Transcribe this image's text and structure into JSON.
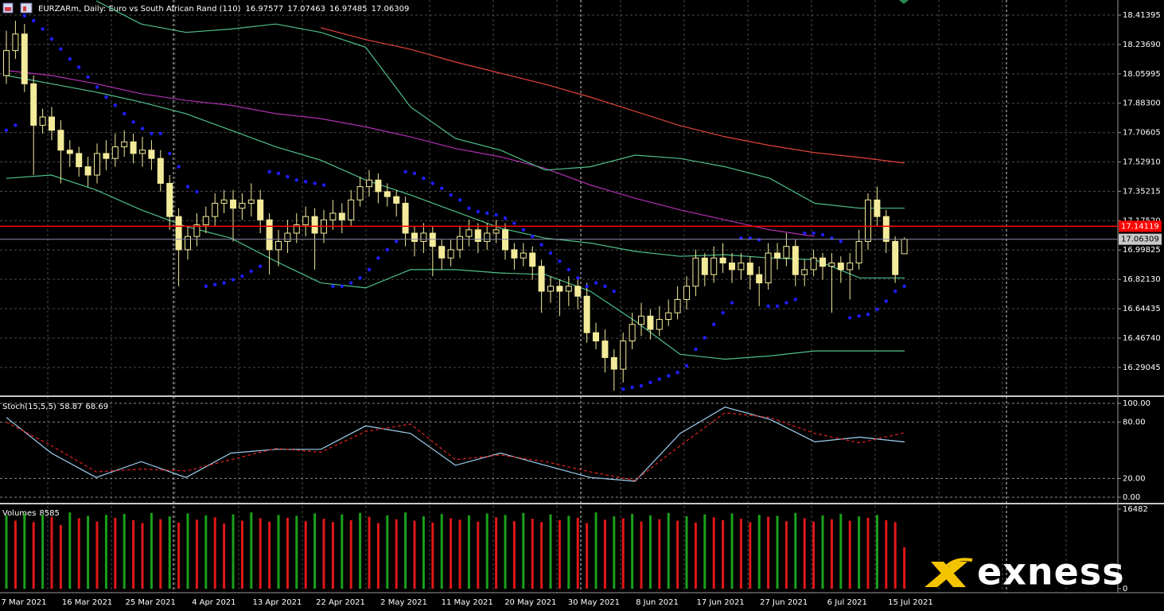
{
  "chart_data": [
    {
      "type": "candlestick",
      "title": "EURZARm, Daily:  Euro vs South African Rand (110)",
      "color": "#f3eb9a",
      "open": [
        18.05,
        18.2,
        18.3,
        18.0,
        17.75,
        17.8,
        17.72,
        17.6,
        17.58,
        17.5,
        17.45,
        17.58,
        17.55,
        17.62,
        17.65,
        17.58,
        17.6,
        17.55,
        17.4,
        17.2,
        17.0,
        17.08,
        17.15,
        17.2,
        17.28,
        17.3,
        17.25,
        17.28,
        17.3,
        17.18,
        17.0,
        17.05,
        17.1,
        17.15,
        17.2,
        17.1,
        17.18,
        17.22,
        17.18,
        17.3,
        17.38,
        17.42,
        17.35,
        17.32,
        17.28,
        17.1,
        17.05,
        17.1,
        17.02,
        16.95,
        17.0,
        17.08,
        17.12,
        17.05,
        17.1,
        17.12,
        17.0,
        16.95,
        16.98,
        16.9,
        16.75,
        16.78,
        16.75,
        16.78,
        16.72,
        16.5,
        16.45,
        16.35,
        16.28,
        16.45,
        16.55,
        16.6,
        16.52,
        16.58,
        16.62,
        16.7,
        16.78,
        16.95,
        16.85,
        16.95,
        16.92,
        16.88,
        16.92,
        16.85,
        16.8,
        16.98,
        16.95,
        17.02,
        16.85,
        16.88,
        16.95,
        16.9,
        16.92,
        16.88,
        16.92,
        17.05,
        17.3,
        17.2,
        17.05,
        16.97577
      ],
      "high": [
        18.32,
        18.38,
        18.36,
        18.05,
        17.85,
        17.86,
        17.78,
        17.66,
        17.62,
        17.56,
        17.64,
        17.66,
        17.7,
        17.72,
        17.7,
        17.68,
        17.66,
        17.6,
        17.45,
        17.25,
        17.14,
        17.22,
        17.26,
        17.34,
        17.36,
        17.36,
        17.34,
        17.4,
        17.36,
        17.22,
        17.12,
        17.18,
        17.22,
        17.26,
        17.25,
        17.24,
        17.3,
        17.28,
        17.36,
        17.44,
        17.48,
        17.46,
        17.4,
        17.36,
        17.32,
        17.14,
        17.16,
        17.14,
        17.06,
        17.06,
        17.14,
        17.18,
        17.16,
        17.16,
        17.18,
        17.16,
        17.04,
        17.04,
        17.02,
        16.94,
        16.84,
        16.82,
        16.84,
        16.84,
        16.8,
        16.56,
        16.52,
        16.4,
        16.5,
        16.62,
        16.68,
        16.64,
        16.66,
        16.7,
        16.78,
        16.84,
        17.0,
        16.98,
        17.02,
        17.04,
        16.98,
        16.98,
        16.96,
        16.9,
        17.04,
        17.04,
        17.1,
        17.06,
        16.94,
        17.0,
        16.98,
        16.98,
        16.96,
        16.98,
        17.12,
        17.34,
        17.38,
        17.24,
        17.08,
        17.07463
      ],
      "low": [
        18.0,
        18.15,
        17.95,
        17.45,
        17.7,
        17.66,
        17.4,
        17.5,
        17.44,
        17.38,
        17.4,
        17.48,
        17.5,
        17.56,
        17.52,
        17.5,
        17.48,
        17.35,
        17.12,
        16.78,
        16.94,
        17.02,
        17.1,
        17.14,
        17.22,
        17.05,
        17.18,
        17.2,
        17.1,
        16.85,
        16.9,
        16.98,
        17.04,
        17.08,
        16.88,
        17.04,
        17.12,
        17.1,
        17.14,
        17.26,
        17.32,
        17.28,
        17.26,
        17.2,
        17.02,
        16.96,
        16.98,
        16.84,
        16.88,
        16.9,
        16.95,
        17.02,
        16.98,
        17.0,
        17.04,
        16.94,
        16.88,
        16.9,
        16.82,
        16.62,
        16.68,
        16.6,
        16.66,
        16.64,
        16.44,
        16.4,
        16.26,
        16.15,
        16.2,
        16.4,
        16.48,
        16.46,
        16.48,
        16.54,
        16.58,
        16.64,
        16.72,
        16.78,
        16.8,
        16.86,
        16.8,
        16.82,
        16.76,
        16.66,
        16.76,
        16.88,
        16.9,
        16.78,
        16.78,
        16.84,
        16.82,
        16.62,
        16.8,
        16.7,
        16.88,
        17.0,
        17.14,
        16.98,
        16.8,
        16.97485
      ],
      "close": [
        18.2,
        18.3,
        18.0,
        17.75,
        17.8,
        17.72,
        17.6,
        17.58,
        17.5,
        17.45,
        17.58,
        17.55,
        17.62,
        17.65,
        17.58,
        17.6,
        17.55,
        17.4,
        17.2,
        17.0,
        17.08,
        17.15,
        17.2,
        17.28,
        17.3,
        17.25,
        17.28,
        17.3,
        17.18,
        17.0,
        17.05,
        17.1,
        17.15,
        17.2,
        17.1,
        17.18,
        17.22,
        17.18,
        17.3,
        17.38,
        17.42,
        17.35,
        17.32,
        17.28,
        17.1,
        17.05,
        17.1,
        17.02,
        16.95,
        17.0,
        17.08,
        17.12,
        17.05,
        17.1,
        17.12,
        17.0,
        16.95,
        16.98,
        16.9,
        16.75,
        16.78,
        16.75,
        16.78,
        16.72,
        16.5,
        16.45,
        16.35,
        16.28,
        16.45,
        16.55,
        16.6,
        16.52,
        16.58,
        16.62,
        16.7,
        16.78,
        16.95,
        16.85,
        16.95,
        16.92,
        16.88,
        16.92,
        16.85,
        16.8,
        16.98,
        16.95,
        17.02,
        16.85,
        16.88,
        16.95,
        16.9,
        16.92,
        16.88,
        16.92,
        17.05,
        17.3,
        17.2,
        17.05,
        16.85,
        17.06309
      ],
      "ylim": [
        16.122,
        18.505
      ],
      "yticks": [
        18.41395,
        {
          "value": 18.2369,
          "label": "18.23690"
        },
        18.05995,
        {
          "value": 17.883,
          "label": "17.88300"
        },
        17.70605,
        {
          "value": 17.5291,
          "label": "17.52910"
        },
        17.35215,
        {
          "value": 17.1752,
          "label": "17.17520"
        },
        16.99825,
        {
          "value": 16.8213,
          "label": "16.82130"
        },
        16.64435,
        {
          "value": 16.4674,
          "label": "16.46740"
        },
        16.29045
      ],
      "grid": true,
      "x_labels": [
        "7 Mar 2021",
        "16 Mar 2021",
        "25 Mar 2021",
        "4 Apr 2021",
        "13 Apr 2021",
        "22 Apr 2021",
        "2 May 2021",
        "11 May 2021",
        "20 May 2021",
        "30 May 2021",
        "8 Jun 2021",
        "17 Jun 2021",
        "27 Jun 2021",
        "6 Jul 2021",
        "15 Jul 2021"
      ],
      "lines": [
        {
          "color": "#e0443a",
          "values": [
            null,
            null,
            null,
            null,
            null,
            null,
            null,
            18.338,
            18.266,
            18.208,
            18.131,
            18.064,
            17.997,
            17.92,
            17.834,
            17.748,
            17.681,
            17.628,
            17.585,
            17.556,
            17.522
          ]
        },
        {
          "color": "#b030b0",
          "values": [
            18.08,
            18.05,
            18.0,
            17.94,
            17.9,
            17.87,
            17.82,
            17.79,
            17.74,
            17.68,
            17.61,
            17.56,
            17.49,
            17.39,
            17.31,
            17.24,
            17.18,
            17.12,
            17.08,
            null,
            null
          ]
        },
        {
          "color": "#4fc08a",
          "values": [
            null,
            null,
            18.5,
            18.36,
            18.31,
            18.33,
            18.36,
            18.31,
            18.22,
            17.86,
            17.67,
            17.6,
            17.48,
            17.5,
            17.57,
            17.55,
            17.5,
            17.43,
            17.28,
            17.25,
            17.25
          ]
        },
        {
          "color": "#4fc08a",
          "values": [
            18.05,
            18.0,
            17.95,
            17.89,
            17.82,
            17.72,
            17.62,
            17.54,
            17.42,
            17.33,
            17.23,
            17.13,
            17.07,
            17.04,
            16.99,
            16.96,
            16.97,
            16.95,
            16.94,
            16.83,
            16.83
          ]
        },
        {
          "color": "#4fc08a",
          "values": [
            17.43,
            17.45,
            17.36,
            17.24,
            17.14,
            17.07,
            16.93,
            16.8,
            16.77,
            16.88,
            16.88,
            16.86,
            16.85,
            16.75,
            16.57,
            16.37,
            16.34,
            16.36,
            16.39,
            16.39,
            16.39
          ]
        }
      ],
      "sar": {
        "color": "#1e1eff",
        "values": [
          17.72,
          17.75,
          18.41,
          18.38,
          18.33,
          18.27,
          18.21,
          18.15,
          18.1,
          18.04,
          17.98,
          17.92,
          17.87,
          17.82,
          17.77,
          17.73,
          17.7,
          17.7,
          17.58,
          17.5,
          17.38,
          17.35,
          16.78,
          16.79,
          16.8,
          16.82,
          16.84,
          16.87,
          16.9,
          17.47,
          17.46,
          17.44,
          17.42,
          17.41,
          17.4,
          17.39,
          16.78,
          16.78,
          16.8,
          16.83,
          16.88,
          16.95,
          17.0,
          17.05,
          17.47,
          17.46,
          17.43,
          17.4,
          17.37,
          17.33,
          17.3,
          17.25,
          17.23,
          17.22,
          17.21,
          17.19,
          17.16,
          17.12,
          17.08,
          17.03,
          16.98,
          16.93,
          16.88,
          16.83,
          16.78,
          16.8,
          16.78,
          16.75,
          16.16,
          16.17,
          16.18,
          16.2,
          16.22,
          16.24,
          16.26,
          16.3,
          16.4,
          16.47,
          16.55,
          16.62,
          16.68,
          17.07,
          17.07,
          17.06,
          16.66,
          16.66,
          16.68,
          16.7,
          17.1,
          17.1,
          17.09,
          17.07,
          17.05,
          16.59,
          16.6,
          16.61,
          16.64,
          16.69,
          16.75,
          16.78
        ]
      },
      "level": {
        "value": 17.14119,
        "color": "#ff0000"
      }
    },
    {
      "type": "line",
      "title": "Stoch(15,5,5)",
      "series": [
        {
          "color": "#9fd0f0",
          "values": [
            85,
            47,
            21,
            38,
            21,
            47,
            51,
            51,
            76,
            68,
            34,
            47,
            34,
            21,
            17,
            68,
            96,
            83,
            59,
            64,
            58.87
          ]
        },
        {
          "color": "#e02020",
          "dashed": true,
          "values": [
            80,
            55,
            27,
            30,
            28,
            40,
            52,
            48,
            70,
            78,
            40,
            45,
            38,
            27,
            18,
            55,
            90,
            85,
            68,
            58,
            68.69
          ]
        }
      ],
      "ylim": [
        0,
        100
      ],
      "yticks": [
        {
          "value": 100,
          "label": "100.00"
        },
        {
          "value": 80,
          "label": "80.00"
        },
        {
          "value": 20,
          "label": "20.00"
        },
        {
          "value": 0,
          "label": "0.00"
        }
      ]
    },
    {
      "type": "bar",
      "title": "Volumes",
      "up_color": "#1aa01a",
      "down_color": "#e01818",
      "values": [
        15200,
        14100,
        15600,
        13800,
        15400,
        14900,
        13200,
        15800,
        14600,
        15100,
        13900,
        15300,
        14700,
        15500,
        14200,
        13600,
        15700,
        14400,
        15000,
        13700,
        15600,
        14300,
        15200,
        14800,
        13500,
        15400,
        14100,
        15800,
        14600,
        13900,
        15300,
        14700,
        15100,
        14000,
        15600,
        14500,
        13800,
        15400,
        14200,
        15700,
        14900,
        13600,
        15200,
        14400,
        15800,
        14100,
        15000,
        13700,
        15500,
        14600,
        14300,
        15200,
        13900,
        15600,
        14800,
        15300,
        14000,
        15700,
        14500,
        13800,
        15400,
        14200,
        15100,
        14700,
        13600,
        15800,
        14300,
        15000,
        14600,
        15500,
        13900,
        15200,
        14400,
        15700,
        14100,
        15000,
        13700,
        15400,
        14800,
        14200,
        15600,
        14500,
        13800,
        15300,
        14900,
        15100,
        14000,
        15700,
        14600,
        13900,
        15200,
        14400,
        15500,
        14100,
        15000,
        14700,
        15300,
        14200,
        13800,
        8585
      ],
      "ylim": [
        0,
        16482
      ],
      "yticks": [
        16482,
        0
      ]
    }
  ],
  "logo": "exness"
}
